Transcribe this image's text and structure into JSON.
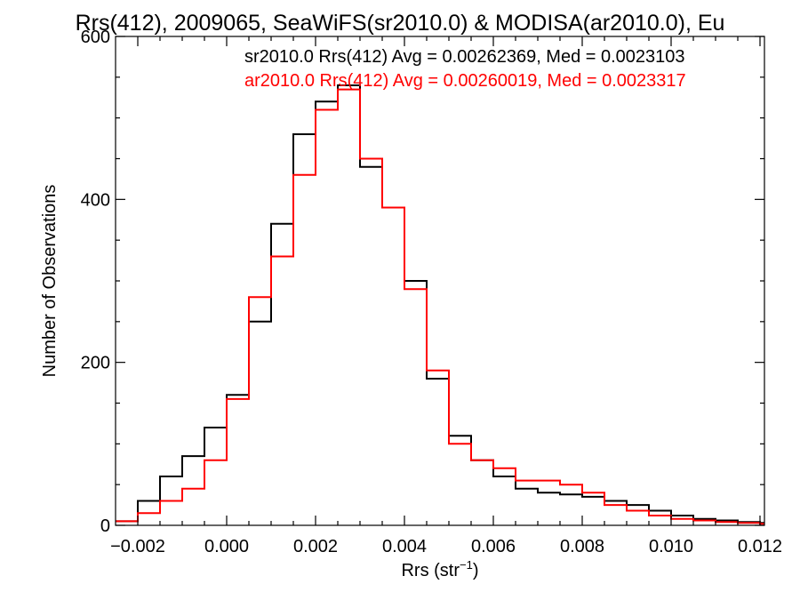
{
  "chart_data": {
    "type": "line",
    "title": "Rrs(412), 2009065, SeaWiFS(sr2010.0) & MODISA(ar2010.0), Eu",
    "xlabel": "Rrs (str",
    "xlabel_sup": "−1",
    "xlabel_close": ")",
    "ylabel": "Number of Observations",
    "xlim": [
      -0.0025,
      0.0121
    ],
    "ylim": [
      0,
      600
    ],
    "x_ticks": [
      {
        "v": -0.002,
        "label": "−0.002"
      },
      {
        "v": 0.0,
        "label": "0.000"
      },
      {
        "v": 0.002,
        "label": "0.002"
      },
      {
        "v": 0.004,
        "label": "0.004"
      },
      {
        "v": 0.006,
        "label": "0.006"
      },
      {
        "v": 0.008,
        "label": "0.008"
      },
      {
        "v": 0.01,
        "label": "0.010"
      },
      {
        "v": 0.012,
        "label": "0.012"
      }
    ],
    "y_ticks": [
      {
        "v": 0,
        "label": "0"
      },
      {
        "v": 200,
        "label": "200"
      },
      {
        "v": 400,
        "label": "400"
      },
      {
        "v": 600,
        "label": "600"
      }
    ],
    "annotations": [
      "sr2010.0 Rrs(412) Avg = 0.00262369, Med = 0.0023103",
      "ar2010.0 Rrs(412) Avg = 0.00260019, Med = 0.0023317"
    ],
    "series": [
      {
        "name": "sr2010.0",
        "color": "#000000",
        "x": [
          -0.0025,
          -0.002,
          -0.0015,
          -0.001,
          -0.0005,
          0.0,
          0.0005,
          0.001,
          0.0015,
          0.002,
          0.0025,
          0.003,
          0.0035,
          0.004,
          0.0045,
          0.005,
          0.0055,
          0.006,
          0.0065,
          0.007,
          0.0075,
          0.008,
          0.0085,
          0.009,
          0.0095,
          0.01,
          0.0105,
          0.011,
          0.0115,
          0.012
        ],
        "y": [
          5,
          30,
          60,
          85,
          120,
          160,
          250,
          370,
          480,
          520,
          540,
          440,
          390,
          300,
          180,
          110,
          80,
          60,
          45,
          40,
          38,
          35,
          30,
          25,
          18,
          12,
          8,
          6,
          4,
          3
        ]
      },
      {
        "name": "ar2010.0",
        "color": "#ff0000",
        "x": [
          -0.0025,
          -0.002,
          -0.0015,
          -0.001,
          -0.0005,
          0.0,
          0.0005,
          0.001,
          0.0015,
          0.002,
          0.0025,
          0.003,
          0.0035,
          0.004,
          0.0045,
          0.005,
          0.0055,
          0.006,
          0.0065,
          0.007,
          0.0075,
          0.008,
          0.0085,
          0.009,
          0.0095,
          0.01,
          0.0105,
          0.011,
          0.0115,
          0.012
        ],
        "y": [
          5,
          15,
          30,
          45,
          80,
          155,
          280,
          330,
          430,
          510,
          535,
          450,
          390,
          290,
          190,
          100,
          80,
          70,
          55,
          55,
          50,
          40,
          25,
          18,
          12,
          8,
          6,
          4,
          3,
          2
        ]
      }
    ],
    "grid": false,
    "legend": "none"
  }
}
